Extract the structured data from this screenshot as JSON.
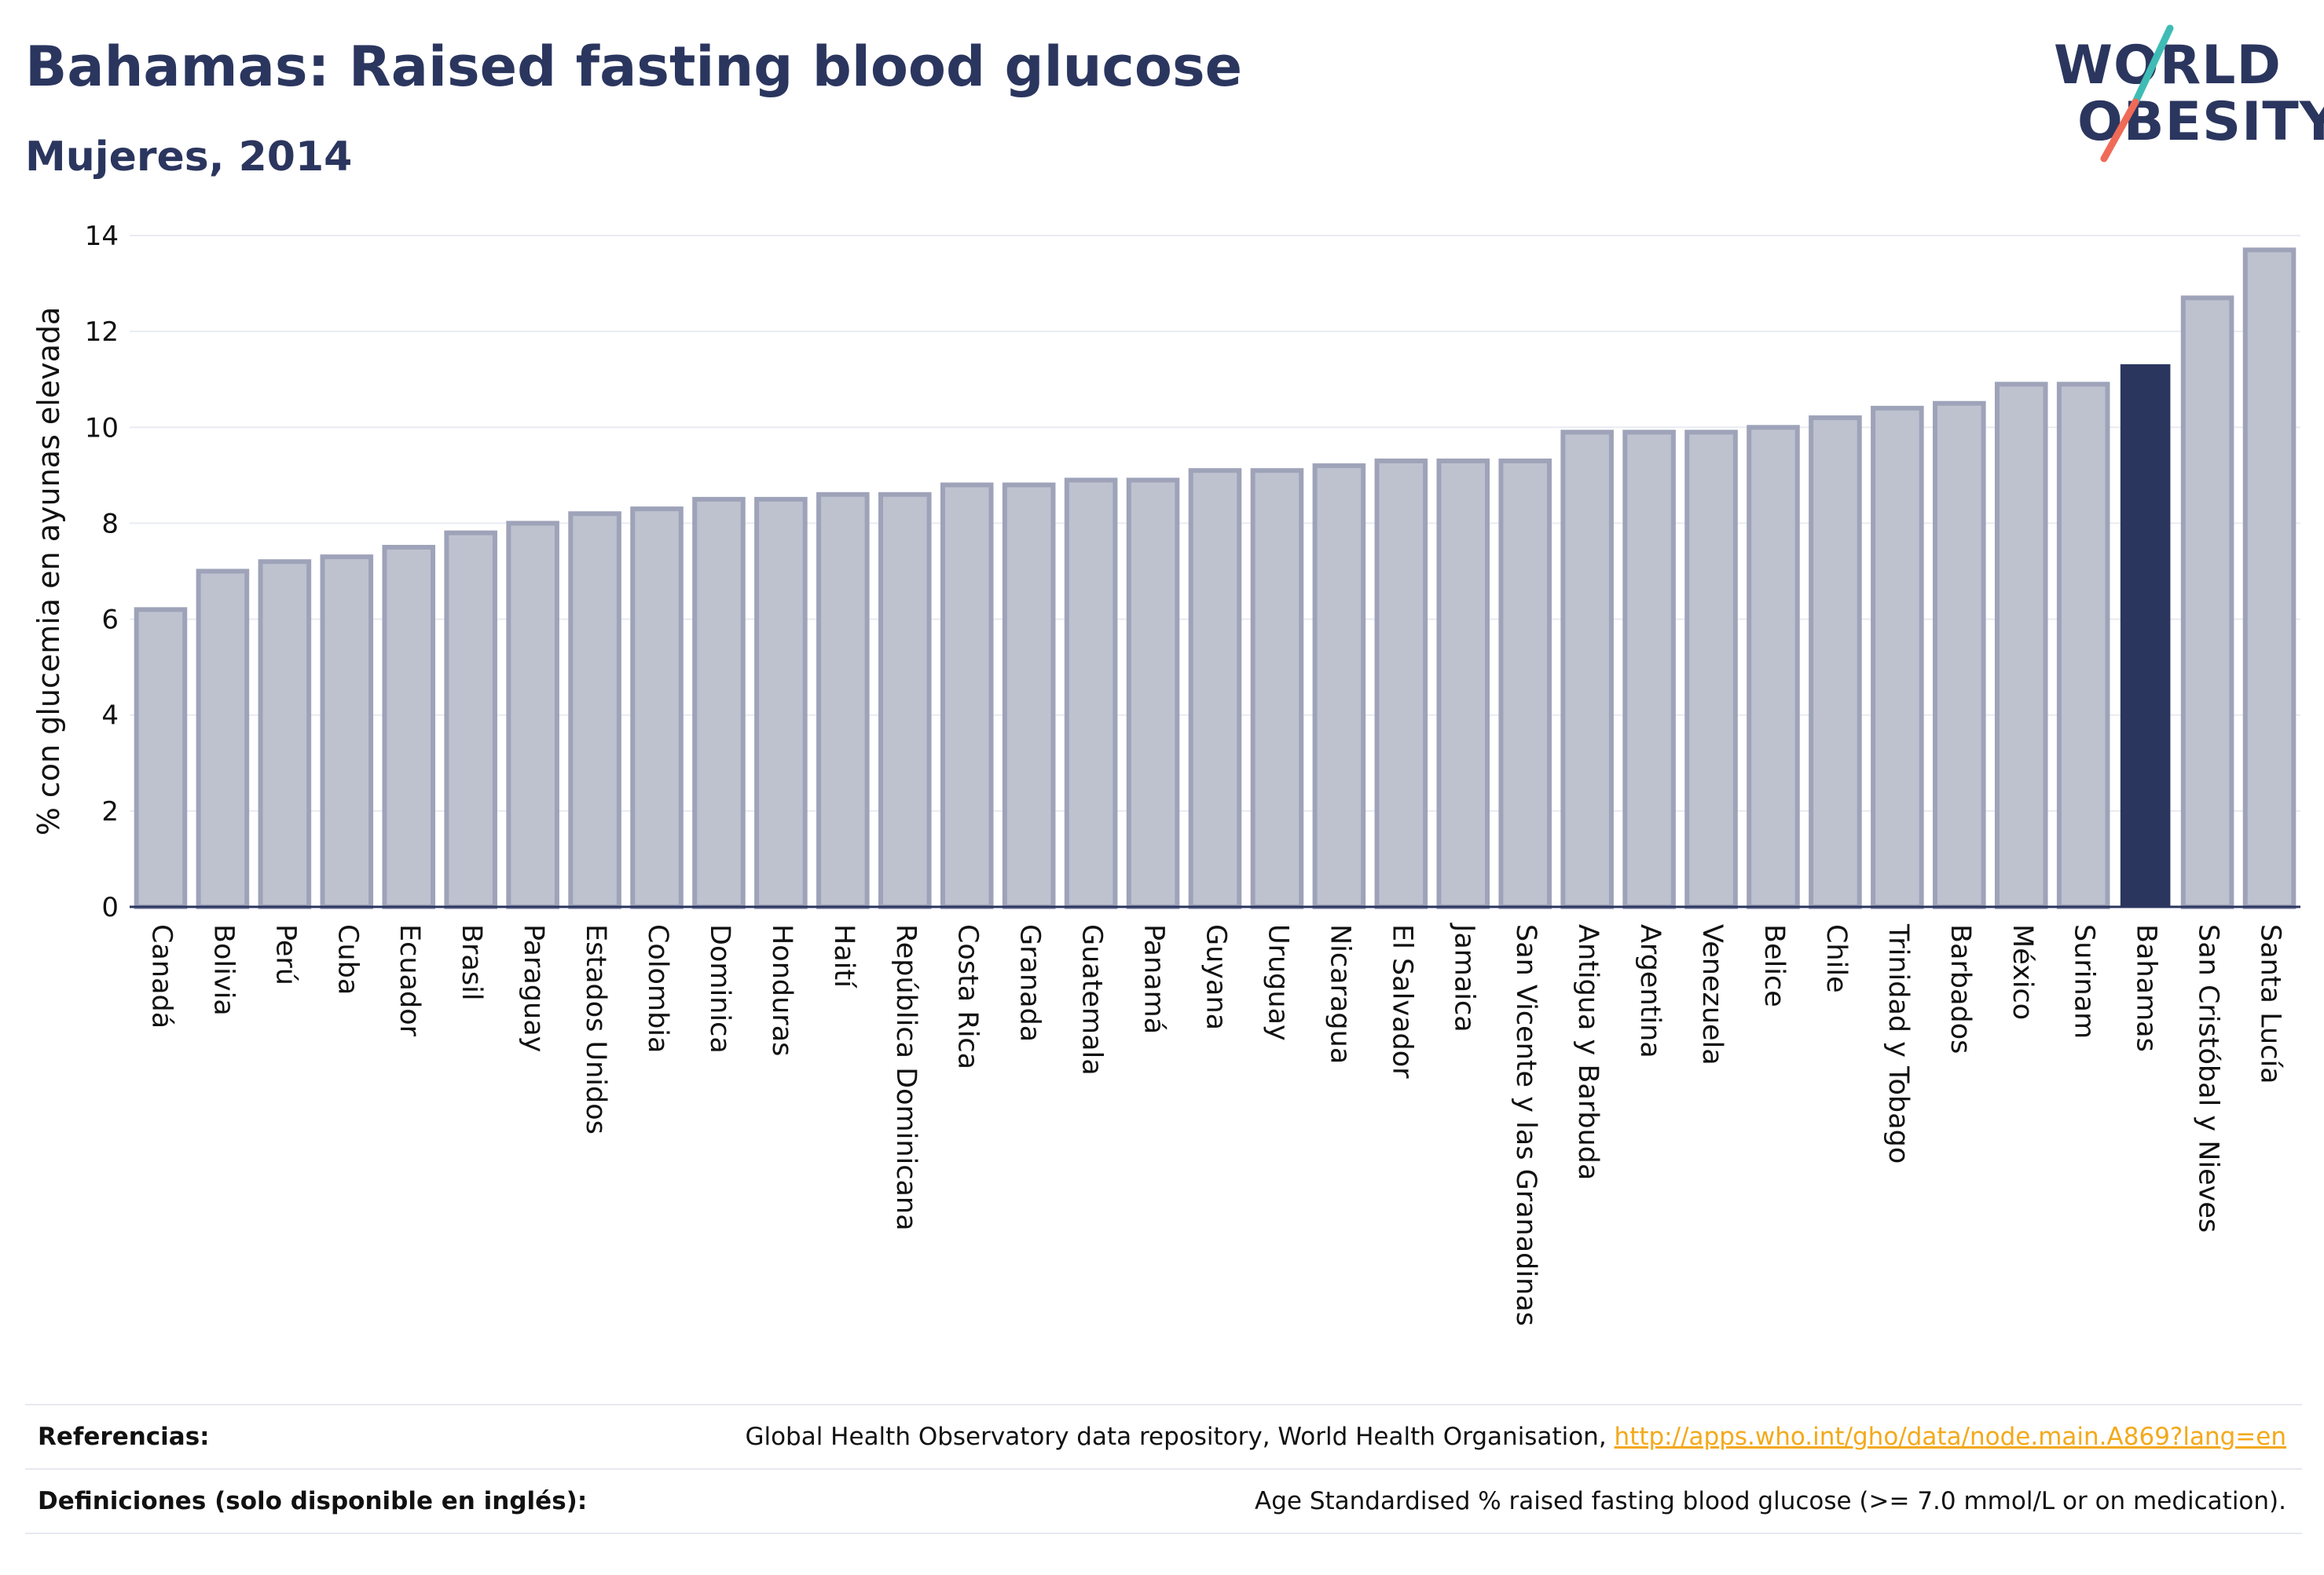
{
  "header": {
    "title": "Bahamas: Raised fasting blood glucose",
    "subtitle": "Mujeres, 2014"
  },
  "logo": {
    "line1": "WORLD",
    "line2": "OBESITY",
    "slash_colors": [
      "#3fbcb5",
      "#ef6b57"
    ]
  },
  "chart_data": {
    "type": "bar",
    "title": "Bahamas: Raised fasting blood glucose",
    "subtitle": "Mujeres, 2014",
    "xlabel": "",
    "ylabel": "% con glucemia en ayunas elevada",
    "ylim": [
      0,
      14
    ],
    "yticks": [
      0,
      2,
      4,
      6,
      8,
      10,
      12,
      14
    ],
    "grid": true,
    "highlight": "Bahamas",
    "colors": {
      "bar_fill": "#bec2cf",
      "bar_stroke": "#9ea3b9",
      "highlight": "#2b365f",
      "grid": "#e9ebf2",
      "axis": "#2b365f"
    },
    "categories": [
      "Canadá",
      "Bolivia",
      "Perú",
      "Cuba",
      "Ecuador",
      "Brasil",
      "Paraguay",
      "Estados Unidos",
      "Colombia",
      "Dominica",
      "Honduras",
      "Haití",
      "República Dominicana",
      "Costa Rica",
      "Granada",
      "Guatemala",
      "Panamá",
      "Guyana",
      "Uruguay",
      "Nicaragua",
      "El Salvador",
      "Jamaica",
      "San Vicente y las Granadinas",
      "Antigua y Barbuda",
      "Argentina",
      "Venezuela",
      "Belice",
      "Chile",
      "Trinidad y Tobago",
      "Barbados",
      "México",
      "Surinam",
      "Bahamas",
      "San Cristóbal y Nieves",
      "Santa Lucía"
    ],
    "values": [
      6.2,
      7.0,
      7.2,
      7.3,
      7.5,
      7.8,
      8.0,
      8.2,
      8.3,
      8.5,
      8.5,
      8.6,
      8.6,
      8.8,
      8.8,
      8.9,
      8.9,
      9.1,
      9.1,
      9.2,
      9.3,
      9.3,
      9.3,
      9.9,
      9.9,
      9.9,
      10.0,
      10.2,
      10.4,
      10.5,
      10.9,
      10.9,
      11.3,
      12.7,
      13.7
    ]
  },
  "footer": {
    "references_label": "Referencias:",
    "references_text": "Global Health Observatory data repository, World Health Organisation, ",
    "references_link": "http://apps.who.int/gho/data/node.main.A869?lang=en",
    "definitions_label": "Definiciones (solo disponible en inglés):",
    "definitions_text": "Age Standardised % raised fasting blood glucose (>= 7.0 mmol/L or on medication)."
  }
}
